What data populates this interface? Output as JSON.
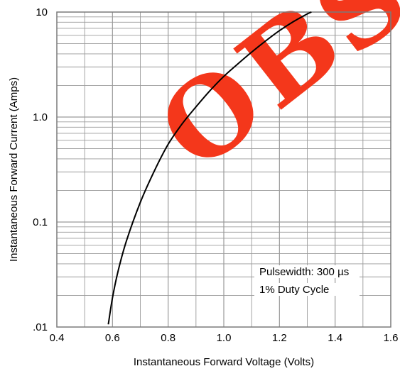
{
  "chart_data": {
    "type": "line",
    "xlabel": "Instantaneous Forward Voltage (Volts)",
    "ylabel": "Instantaneous Forward Current (Amps)",
    "xlim": [
      0.4,
      1.6
    ],
    "ylim": [
      0.01,
      10
    ],
    "yscale": "log",
    "grid": true,
    "x_ticks": [
      0.4,
      0.6,
      0.8,
      1.0,
      1.2,
      1.4,
      1.6
    ],
    "x_tick_labels": [
      "0.4",
      "0.6",
      "0.8",
      "1.0",
      "1.2",
      "1.4",
      "1.6"
    ],
    "y_ticks": [
      0.01,
      0.1,
      1,
      10
    ],
    "y_tick_labels": [
      ".01",
      "0.1",
      "1.0",
      "10"
    ],
    "series": [
      {
        "x": [
          0.585,
          0.6,
          0.62,
          0.65,
          0.7,
          0.75,
          0.8,
          0.85,
          0.9,
          0.95,
          1.0,
          1.05,
          1.1,
          1.15,
          1.2,
          1.25,
          1.3,
          1.315
        ],
        "y": [
          0.0106,
          0.019,
          0.034,
          0.066,
          0.154,
          0.305,
          0.55,
          0.86,
          1.25,
          1.78,
          2.44,
          3.2,
          4.15,
          5.3,
          6.65,
          8.1,
          9.6,
          10.0
        ],
        "color": "#000000"
      }
    ],
    "annotations": [
      "Pulsewidth: 300 µs",
      "1% Duty Cycle"
    ]
  },
  "watermark": {
    "text": "OBS",
    "color": "#f4371b"
  },
  "colors": {
    "grid": "#9a9a9a",
    "axis": "#7a7a7a",
    "curve": "#000000"
  }
}
